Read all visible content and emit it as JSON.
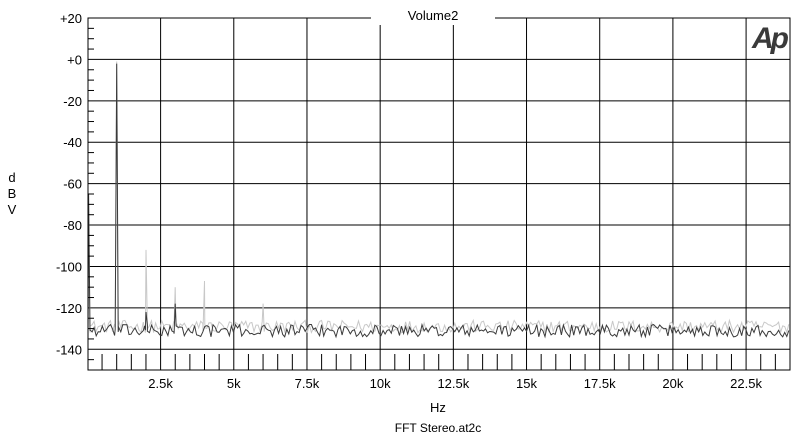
{
  "chart_data": {
    "type": "line",
    "title": "Volume2",
    "logo": "Ap",
    "xlabel": "Hz",
    "ylabel": "dBV",
    "ylabel_letters": [
      "d",
      "B",
      "V"
    ],
    "footer": "FFT Stereo.at2c",
    "xlim": [
      20,
      24000
    ],
    "ylim": [
      -150,
      20
    ],
    "x_ticks": [
      {
        "value": 2500,
        "label": "2.5k"
      },
      {
        "value": 5000,
        "label": "5k"
      },
      {
        "value": 7500,
        "label": "7.5k"
      },
      {
        "value": 10000,
        "label": "10k"
      },
      {
        "value": 12500,
        "label": "12.5k"
      },
      {
        "value": 15000,
        "label": "15k"
      },
      {
        "value": 17500,
        "label": "17.5k"
      },
      {
        "value": 20000,
        "label": "20k"
      },
      {
        "value": 22500,
        "label": "22.5k"
      }
    ],
    "y_ticks": [
      {
        "value": 20,
        "label": "+20"
      },
      {
        "value": 0,
        "label": "+0"
      },
      {
        "value": -20,
        "label": "-20"
      },
      {
        "value": -40,
        "label": "-40"
      },
      {
        "value": -60,
        "label": "-60"
      },
      {
        "value": -80,
        "label": "-80"
      },
      {
        "value": -100,
        "label": "-100"
      },
      {
        "value": -120,
        "label": "-120"
      },
      {
        "value": -140,
        "label": "-140"
      }
    ],
    "grid": true,
    "series": [
      {
        "color": "#c8c8c8",
        "noise_floor": -129,
        "peaks": [
          [
            40,
            -70
          ],
          [
            1000,
            -1
          ],
          [
            2000,
            -92
          ],
          [
            3000,
            -110
          ],
          [
            4000,
            -107
          ],
          [
            6000,
            -118
          ]
        ]
      },
      {
        "color": "#3a3a3a",
        "noise_floor": -131,
        "peaks": [
          [
            40,
            -65
          ],
          [
            1000,
            -2
          ],
          [
            2000,
            -122
          ],
          [
            3000,
            -118
          ]
        ]
      }
    ]
  }
}
